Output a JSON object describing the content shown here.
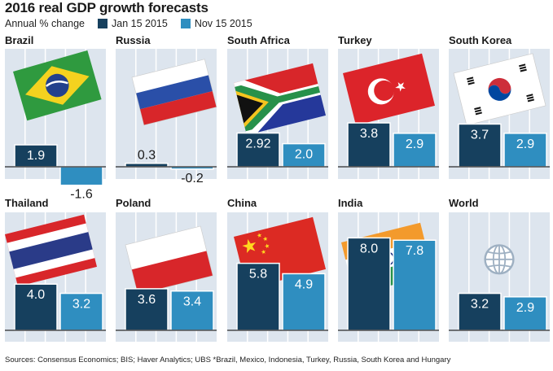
{
  "title": "2016 real GDP growth forecasts",
  "subtitle": "Annual % change",
  "footer": "Sources: Consensus Economics; BIS; Haver Analytics; UBS  *Brazil, Mexico, Indonesia, Turkey, Russia, South Korea and Hungary",
  "colors": {
    "jan": "#16405e",
    "nov": "#2f8ec0",
    "panel_bg": "#dde5ee",
    "axis": "#2b2b2b"
  },
  "chart_data": {
    "type": "bar",
    "series": [
      {
        "name": "Jan 15 2015",
        "color": "#16405e"
      },
      {
        "name": "Nov 15 2015",
        "color": "#2f8ec0"
      }
    ],
    "panels": [
      {
        "title": "Brazil",
        "flag": "brazil-flag-icon",
        "values": [
          1.9,
          -1.6
        ],
        "labels": [
          "1.9",
          "-1.6"
        ]
      },
      {
        "title": "Russia",
        "flag": "russia-flag-icon",
        "values": [
          0.3,
          -0.2
        ],
        "labels": [
          "0.3",
          "-0.2"
        ]
      },
      {
        "title": "South Africa",
        "flag": "south-africa-flag-icon",
        "values": [
          2.92,
          2.0
        ],
        "labels": [
          "2.92",
          "2.0"
        ]
      },
      {
        "title": "Turkey",
        "flag": "turkey-flag-icon",
        "values": [
          3.8,
          2.9
        ],
        "labels": [
          "3.8",
          "2.9"
        ]
      },
      {
        "title": "South Korea",
        "flag": "south-korea-flag-icon",
        "values": [
          3.7,
          2.9
        ],
        "labels": [
          "3.7",
          "2.9"
        ]
      },
      {
        "title": "Thailand",
        "flag": "thailand-flag-icon",
        "values": [
          4.0,
          3.2
        ],
        "labels": [
          "4.0",
          "3.2"
        ]
      },
      {
        "title": "Poland",
        "flag": "poland-flag-icon",
        "values": [
          3.6,
          3.4
        ],
        "labels": [
          "3.6",
          "3.4"
        ]
      },
      {
        "title": "China",
        "flag": "china-flag-icon",
        "values": [
          5.8,
          4.9
        ],
        "labels": [
          "5.8",
          "4.9"
        ]
      },
      {
        "title": "India",
        "flag": "india-flag-icon",
        "values": [
          8.0,
          7.8
        ],
        "labels": [
          "8.0",
          "7.8"
        ]
      },
      {
        "title": "World",
        "flag": "globe-icon",
        "values": [
          3.2,
          2.9
        ],
        "labels": [
          "3.2",
          "2.9"
        ]
      }
    ]
  }
}
